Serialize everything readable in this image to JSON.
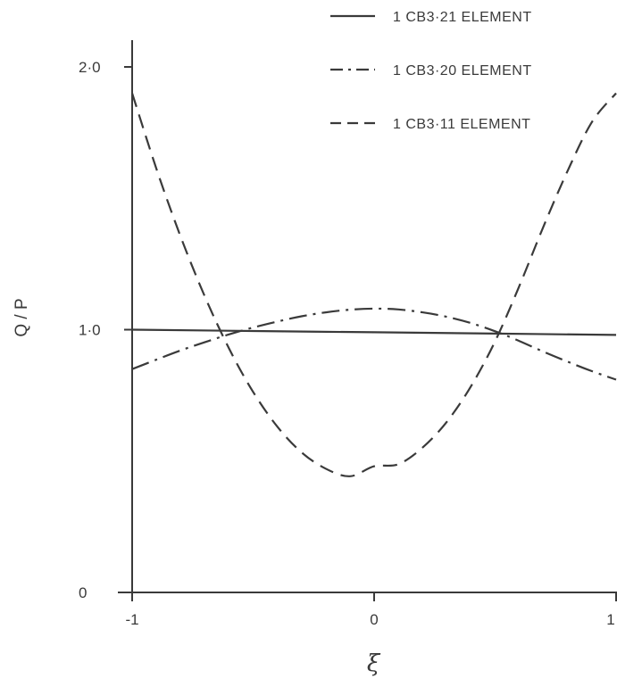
{
  "chart_data": {
    "type": "line",
    "xlabel": "ξ",
    "ylabel": "Q / P",
    "xlim": [
      -1,
      1
    ],
    "ylim": [
      0,
      2.0
    ],
    "x_ticks": [
      "-1",
      "0",
      "1"
    ],
    "y_ticks": [
      "0",
      "1·0",
      "2·0"
    ],
    "legend_position": "top-right",
    "grid": false,
    "series": [
      {
        "name": "1 CB3·21 ELEMENT",
        "style": "solid",
        "x": [
          -1,
          -0.5,
          0,
          0.5,
          1
        ],
        "values": [
          1.0,
          0.995,
          0.99,
          0.985,
          0.98
        ]
      },
      {
        "name": "1 CB3·20 ELEMENT",
        "style": "dashdot",
        "x": [
          -1,
          -0.9,
          -0.8,
          -0.7,
          -0.6,
          -0.5,
          -0.4,
          -0.3,
          -0.2,
          -0.1,
          0,
          0.1,
          0.2,
          0.3,
          0.4,
          0.5,
          0.6,
          0.7,
          0.8,
          0.9,
          1
        ],
        "values": [
          0.85,
          0.886,
          0.921,
          0.952,
          0.982,
          1.008,
          1.031,
          1.051,
          1.066,
          1.076,
          1.08,
          1.077,
          1.066,
          1.049,
          1.025,
          0.994,
          0.957,
          0.916,
          0.878,
          0.842,
          0.81
        ]
      },
      {
        "name": "1 CB3·11 ELEMENT",
        "style": "dashed",
        "x": [
          -1,
          -0.9,
          -0.8,
          -0.7,
          -0.6,
          -0.5,
          -0.4,
          -0.3,
          -0.2,
          -0.1,
          0,
          0.1,
          0.2,
          0.3,
          0.4,
          0.5,
          0.6,
          0.7,
          0.8,
          0.9,
          1
        ],
        "values": [
          1.9,
          1.613,
          1.355,
          1.127,
          0.929,
          0.763,
          0.631,
          0.533,
          0.471,
          0.442,
          0.48,
          0.488,
          0.551,
          0.649,
          0.784,
          0.956,
          1.166,
          1.393,
          1.605,
          1.79,
          1.9
        ]
      }
    ]
  }
}
